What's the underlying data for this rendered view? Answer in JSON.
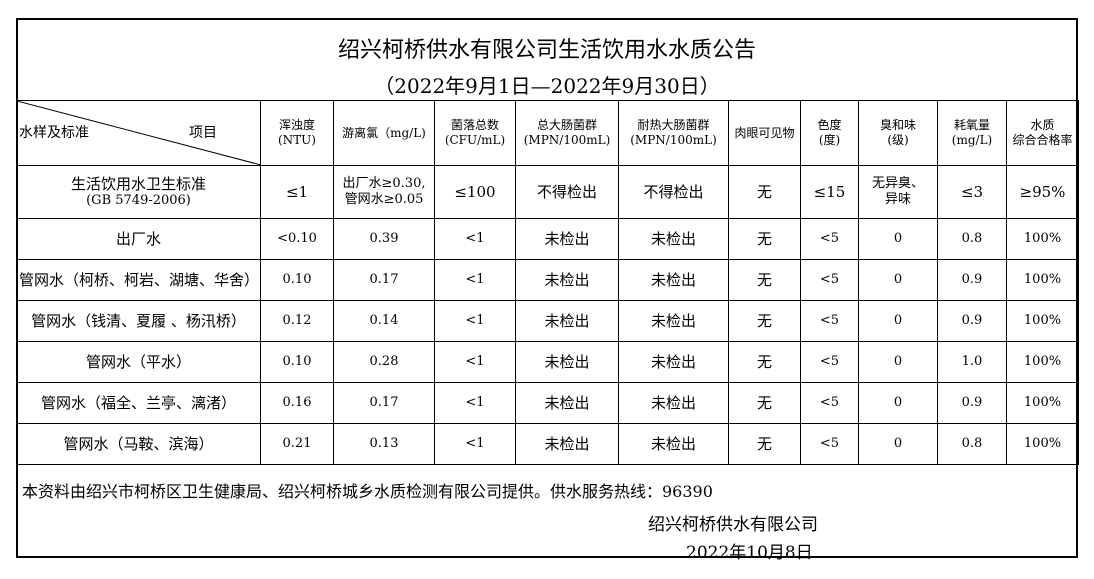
{
  "title": "绍兴柯桥供水有限公司生活饮用水水质公告",
  "period": "（2022年9月1日—2022年9月30日）",
  "header": {
    "corner_left": "水样及标准",
    "corner_right": "项目",
    "columns": [
      [
        "浑浊度",
        "(NTU)"
      ],
      [
        "游离氯（mg/L)",
        ""
      ],
      [
        "菌落总数",
        "(CFU/mL)"
      ],
      [
        "总大肠菌群",
        "(MPN/100mL)"
      ],
      [
        "耐热大肠菌群",
        "(MPN/100mL)"
      ],
      [
        "肉眼可见物",
        ""
      ],
      [
        "色度",
        "(度)"
      ],
      [
        "臭和味",
        "(级)"
      ],
      [
        "耗氧量",
        "(mg/L)"
      ],
      [
        "水质",
        "综合合格率"
      ]
    ]
  },
  "standard": {
    "name": "生活饮用水卫生标准",
    "code": "(GB 5749-2006)",
    "values": [
      "≤1",
      "出厂水≥0.30,\n管网水≥0.05",
      "≤100",
      "不得检出",
      "不得检出",
      "无",
      "≤15",
      "无异臭、\n异味",
      "≤3",
      "≥95%"
    ]
  },
  "rows": [
    {
      "name": "出厂水",
      "values": [
        "<0.10",
        "0.39",
        "<1",
        "未检出",
        "未检出",
        "无",
        "<5",
        "0",
        "0.8",
        "100%"
      ]
    },
    {
      "name": "管网水（柯桥、柯岩、湖塘、华舍）",
      "values": [
        "0.10",
        "0.17",
        "<1",
        "未检出",
        "未检出",
        "无",
        "<5",
        "0",
        "0.9",
        "100%"
      ]
    },
    {
      "name": "管网水（钱清、夏履 、杨汛桥）",
      "values": [
        "0.12",
        "0.14",
        "<1",
        "未检出",
        "未检出",
        "无",
        "<5",
        "0",
        "0.9",
        "100%"
      ]
    },
    {
      "name": "管网水（平水）",
      "values": [
        "0.10",
        "0.28",
        "<1",
        "未检出",
        "未检出",
        "无",
        "<5",
        "0",
        "1.0",
        "100%"
      ]
    },
    {
      "name": "管网水（福全、兰亭、漓渚）",
      "values": [
        "0.16",
        "0.17",
        "<1",
        "未检出",
        "未检出",
        "无",
        "<5",
        "0",
        "0.9",
        "100%"
      ]
    },
    {
      "name": "管网水（马鞍、滨海）",
      "values": [
        "0.21",
        "0.13",
        "<1",
        "未检出",
        "未检出",
        "无",
        "<5",
        "0",
        "0.8",
        "100%"
      ]
    }
  ],
  "footer": {
    "note": "本资料由绍兴市柯桥区卫生健康局、绍兴柯桥城乡水质检测有限公司提供。供水服务热线：96390",
    "company": "绍兴柯桥供水有限公司",
    "date": "2022年10月8日"
  }
}
